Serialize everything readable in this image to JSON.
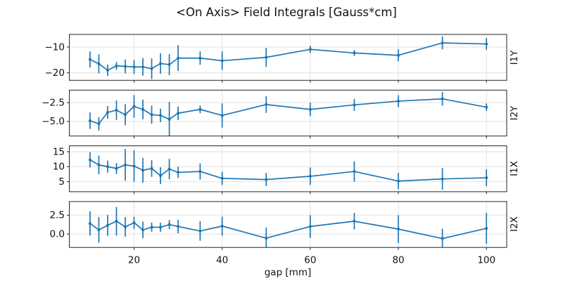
{
  "chart_data": {
    "type": "line",
    "title": "<On Axis> Field Integrals [Gauss*cm]",
    "xlabel": "gap [mm]",
    "line_color": "#1f77b4",
    "grid": true,
    "grid_color": "#e2e2e2",
    "frame_color": "#262626",
    "x": [
      10,
      12,
      14,
      16,
      18,
      20,
      22,
      24,
      26,
      28,
      30,
      35,
      40,
      50,
      60,
      70,
      80,
      90,
      100
    ],
    "xlim": [
      5.3,
      104.6
    ],
    "xticks": [
      20,
      40,
      60,
      80,
      100
    ],
    "xtick_labels": [
      "20",
      "40",
      "60",
      "80",
      "100"
    ],
    "subplots": [
      {
        "ylabel": "I1Y",
        "ylim": [
          -22.9,
          -5.1
        ],
        "yticks": [
          -20,
          -10
        ],
        "ytick_labels": [
          "−20",
          "−10"
        ],
        "values": [
          -14.8,
          -16.5,
          -19.0,
          -17.3,
          -17.5,
          -17.7,
          -17.7,
          -18.4,
          -16.4,
          -16.8,
          -14.3,
          -14.3,
          -15.3,
          -14.0,
          -10.9,
          -12.3,
          -13.2,
          -8.4,
          -8.8
        ],
        "errors": [
          3.1,
          3.7,
          2.2,
          1.5,
          2.7,
          2.7,
          3.4,
          4.0,
          4.0,
          4.1,
          5.0,
          2.6,
          3.6,
          3.7,
          1.4,
          1.1,
          2.3,
          2.5,
          2.3
        ]
      },
      {
        "ylabel": "I2Y",
        "ylim": [
          -6.93,
          -0.84
        ],
        "yticks": [
          -5.0,
          -2.5
        ],
        "ytick_labels": [
          "−5.0",
          "−2.5"
        ],
        "values": [
          -4.9,
          -5.3,
          -3.8,
          -3.5,
          -4.1,
          -3.0,
          -3.4,
          -4.1,
          -4.2,
          -4.7,
          -3.9,
          -3.4,
          -4.2,
          -2.75,
          -3.4,
          -2.8,
          -2.3,
          -2.0,
          -3.1
        ],
        "errors": [
          1.1,
          0.9,
          0.85,
          1.3,
          1.4,
          1.5,
          1.3,
          1.2,
          0.9,
          2.3,
          0.9,
          0.5,
          1.6,
          1.1,
          0.9,
          0.8,
          0.8,
          0.9,
          0.5
        ]
      },
      {
        "ylabel": "I1X",
        "ylim": [
          1.64,
          16.96
        ],
        "yticks": [
          5,
          10,
          15
        ],
        "ytick_labels": [
          "5",
          "10",
          "15"
        ],
        "values": [
          12.3,
          10.6,
          10.0,
          9.4,
          10.6,
          10.2,
          8.8,
          9.4,
          7.0,
          9.2,
          8.1,
          8.4,
          6.1,
          5.7,
          6.8,
          8.4,
          5.2,
          5.9,
          6.3
        ],
        "errors": [
          2.6,
          3.1,
          2.0,
          1.8,
          5.3,
          5.2,
          4.1,
          2.8,
          2.8,
          3.4,
          1.9,
          2.7,
          2.2,
          2.2,
          2.9,
          3.4,
          2.7,
          3.6,
          2.8
        ]
      },
      {
        "ylabel": "I2X",
        "ylim": [
          -1.78,
          4.31
        ],
        "yticks": [
          0.0,
          2.5
        ],
        "ytick_labels": [
          "0.0",
          "2.5"
        ],
        "values": [
          1.4,
          0.55,
          1.15,
          1.7,
          0.95,
          1.5,
          0.55,
          0.9,
          0.9,
          1.25,
          1.0,
          0.4,
          1.05,
          -0.55,
          1.0,
          1.7,
          0.65,
          -0.6,
          0.75
        ],
        "errors": [
          1.6,
          1.7,
          1.4,
          1.9,
          1.3,
          0.8,
          1.1,
          0.6,
          0.6,
          0.6,
          0.9,
          1.3,
          1.25,
          1.4,
          1.5,
          1.1,
          1.85,
          1.3,
          2.05
        ]
      }
    ]
  }
}
